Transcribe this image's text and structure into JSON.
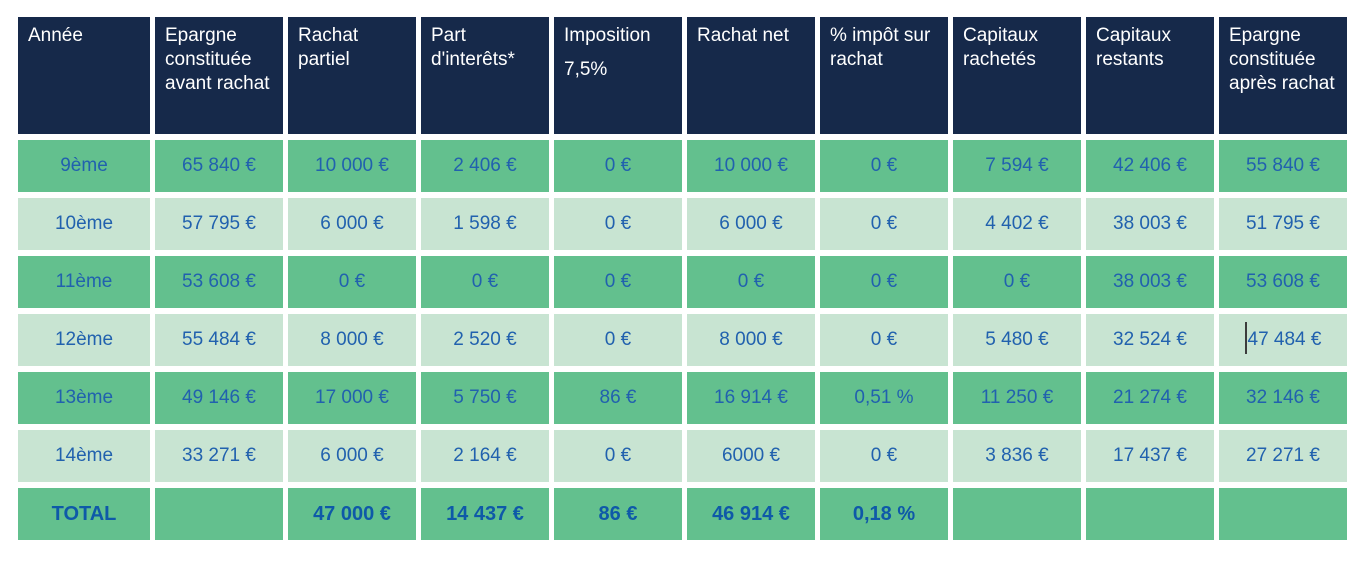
{
  "table": {
    "columns": [
      {
        "label": "Année"
      },
      {
        "label": "Epargne constituée avant rachat"
      },
      {
        "label": "Rachat partiel"
      },
      {
        "label": "Part d'interêts*"
      },
      {
        "label": "Imposition",
        "sublabel": "7,5%"
      },
      {
        "label": "Rachat net"
      },
      {
        "label": "% impôt sur rachat"
      },
      {
        "label": "Capitaux rachetés"
      },
      {
        "label": "Capitaux restants"
      },
      {
        "label": "Epargne constituée après rachat"
      }
    ],
    "rows": [
      {
        "year": "9ème",
        "shade": "green",
        "cells": [
          "65 840 €",
          "10 000 €",
          "2 406 €",
          "0 €",
          "10 000 €",
          "0 €",
          "7 594 €",
          "42 406 €",
          "55 840 €"
        ]
      },
      {
        "year": "10ème",
        "shade": "pale",
        "cells": [
          "57 795 €",
          "6 000 €",
          "1 598 €",
          "0 €",
          "6 000 €",
          "0 €",
          "4 402 €",
          "38 003 €",
          "51 795 €"
        ]
      },
      {
        "year": "11ème",
        "shade": "green",
        "cells": [
          "53 608 €",
          "0 €",
          "0 €",
          "0 €",
          "0 €",
          "0 €",
          "0 €",
          "38 003 €",
          "53 608 €"
        ]
      },
      {
        "year": "12ème",
        "shade": "pale",
        "cells": [
          "55 484 €",
          "8 000 €",
          "2 520 €",
          "0 €",
          "8 000 €",
          "0 €",
          "5 480 €",
          "32 524 €",
          "47 484 €"
        ],
        "caret_cell": 8
      },
      {
        "year": "13ème",
        "shade": "green",
        "cells": [
          "49 146 €",
          "17 000 €",
          "5 750 €",
          "86 €",
          "16 914 €",
          "0,51 %",
          "11 250 €",
          "21 274 €",
          "32 146 €"
        ]
      },
      {
        "year": "14ème",
        "shade": "pale",
        "cells": [
          "33 271 €",
          "6 000 €",
          "2 164 €",
          "0 €",
          "6000 €",
          "0 €",
          "3 836 €",
          "17 437 €",
          "27 271 €"
        ]
      }
    ],
    "total_row": {
      "label": "TOTAL",
      "cells": [
        "",
        "47 000 €",
        "14 437 €",
        "86 €",
        "46 914 €",
        "0,18 %",
        "",
        "",
        ""
      ]
    }
  },
  "colors": {
    "header_bg": "#16294a",
    "header_text": "#ffffff",
    "row_green": "#63c08e",
    "row_pale": "#c8e4d2",
    "cell_text": "#2161ae",
    "total_text": "#0e59a8"
  }
}
